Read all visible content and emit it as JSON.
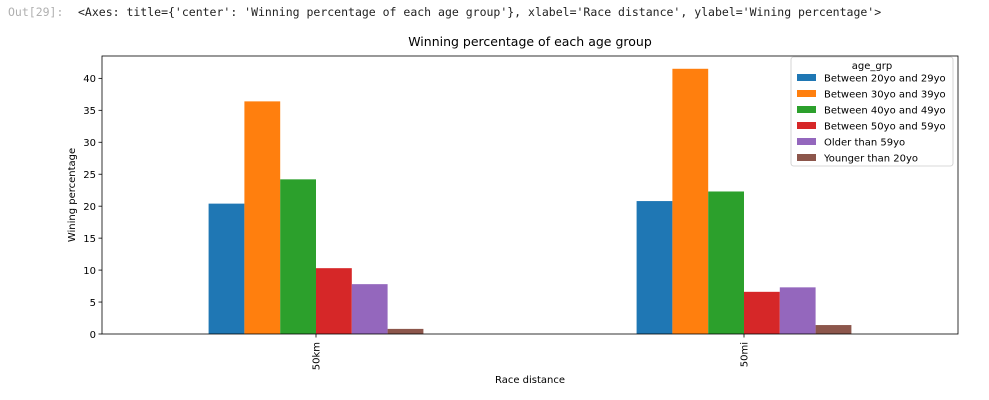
{
  "cell": {
    "prompt": "Out[29]:",
    "output_text": "<Axes: title={'center': 'Winning percentage of each age group'}, xlabel='Race distance', ylabel='Wining percentage'>"
  },
  "chart_data": {
    "type": "bar",
    "title": "Winning percentage of each age group",
    "xlabel": "Race distance",
    "ylabel": "Wining percentage",
    "categories": [
      "50km",
      "50mi"
    ],
    "ylim": [
      0,
      43.5
    ],
    "yticks": [
      0,
      5,
      10,
      15,
      20,
      25,
      30,
      35,
      40
    ],
    "grid": false,
    "legend": {
      "title": "age_grp",
      "placement": "top-right"
    },
    "series": [
      {
        "name": "Between 20yo and 29yo",
        "color": "#1f77b4",
        "values": [
          20.4,
          20.8
        ]
      },
      {
        "name": "Between 30yo and 39yo",
        "color": "#ff7f0e",
        "values": [
          36.4,
          41.5
        ]
      },
      {
        "name": "Between 40yo and 49yo",
        "color": "#2ca02c",
        "values": [
          24.2,
          22.3
        ]
      },
      {
        "name": "Between 50yo and 59yo",
        "color": "#d62728",
        "values": [
          10.3,
          6.6
        ]
      },
      {
        "name": "Older than 59yo",
        "color": "#9467bd",
        "values": [
          7.8,
          7.3
        ]
      },
      {
        "name": "Younger than 20yo",
        "color": "#8c564b",
        "values": [
          0.8,
          1.4
        ]
      }
    ]
  }
}
